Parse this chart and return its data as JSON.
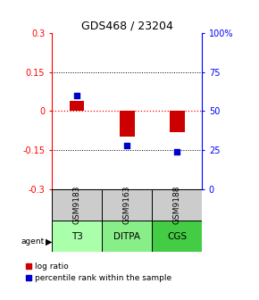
{
  "title": "GDS468 / 23204",
  "samples": [
    "GSM9183",
    "GSM9163",
    "GSM9188"
  ],
  "agents": [
    "T3",
    "DITPA",
    "CGS"
  ],
  "log_ratio": [
    0.04,
    -0.1,
    -0.08
  ],
  "percentile": [
    60,
    28,
    24
  ],
  "ylim_left": [
    -0.3,
    0.3
  ],
  "ylim_right": [
    0,
    100
  ],
  "yticks_left": [
    -0.3,
    -0.15,
    0,
    0.15,
    0.3
  ],
  "yticks_right": [
    0,
    25,
    50,
    75,
    100
  ],
  "ytick_labels_right": [
    "0",
    "25",
    "50",
    "75",
    "100%"
  ],
  "hlines": [
    0.15,
    -0.15
  ],
  "bar_color": "#cc0000",
  "dot_color": "#0000cc",
  "bar_width": 0.3,
  "agent_colors": [
    "#aaffaa",
    "#88ee88",
    "#44cc44"
  ],
  "sample_bg_color": "#cccccc",
  "legend_bar_label": "log ratio",
  "legend_dot_label": "percentile rank within the sample",
  "title_fontsize": 9,
  "axis_fontsize": 7,
  "table_fontsize": 6.5,
  "agent_fontsize": 7.5,
  "legend_fontsize": 6.5
}
